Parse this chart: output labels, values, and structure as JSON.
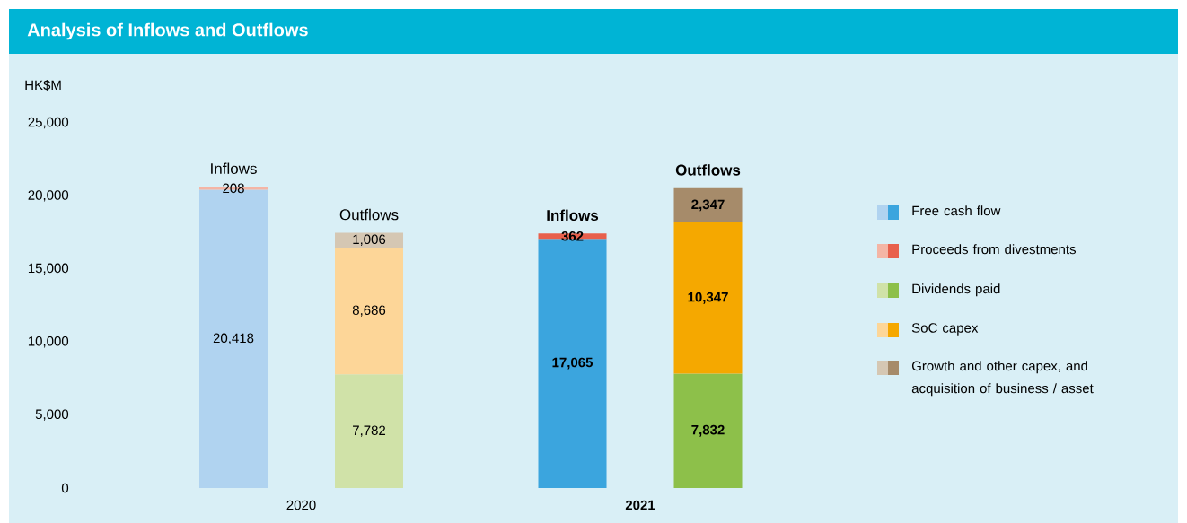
{
  "chart_data": {
    "type": "bar",
    "title": "Analysis of Inflows and Outflows",
    "ylabel": "HK$M",
    "categories": [
      null,
      null,
      null,
      null
    ],
    "stacked": true,
    "legend": "right",
    "ylim": [
      0,
      25000
    ],
    "yticks": [
      0,
      {
        "value": 5000,
        "label": "5,000"
      },
      {
        "value": 10000,
        "label": "10,000"
      },
      {
        "value": 15000,
        "label": "15,000"
      },
      {
        "value": 20000,
        "label": "20,000"
      },
      {
        "value": 25000,
        "label": "25,000"
      }
    ],
    "series": [
      {
        "name": "Free cash flow",
        "values": [
          20418,
          null,
          17065,
          null
        ],
        "colors": [
          "#b0d3f0",
          null,
          "#3ba5de",
          null
        ],
        "value_labels": [
          "20,418",
          null,
          "17,065",
          null
        ]
      },
      {
        "name": "Proceeds from divestments",
        "values": [
          208,
          null,
          362,
          null
        ],
        "colors": [
          "#f4b5a5",
          null,
          "#e8604c",
          null
        ],
        "value_labels": [
          "208",
          null,
          "362",
          null
        ]
      },
      {
        "name": "Dividends paid",
        "values": [
          null,
          7782,
          null,
          7832
        ],
        "colors": [
          null,
          "#d0e2a8",
          null,
          "#8dc04a"
        ],
        "value_labels": [
          null,
          "7,782",
          null,
          "7,832"
        ]
      },
      {
        "name": "SoC capex",
        "values": [
          null,
          8686,
          null,
          10347
        ],
        "colors": [
          null,
          "#fdd698",
          null,
          "#f5a800"
        ],
        "value_labels": [
          null,
          "8,686",
          null,
          "10,347"
        ]
      },
      {
        "name": "Growth and other capex, and acquisition of business / asset",
        "values": [
          null,
          1006,
          null,
          2347
        ],
        "colors": [
          null,
          "#d5c7b3",
          null,
          "#a68b6a"
        ],
        "value_labels": [
          null,
          "1,006",
          null,
          "2,347"
        ]
      }
    ],
    "annotations": [
      "Inflows",
      "Outflows",
      "Inflows",
      "Outflows",
      "2020",
      "2021"
    ]
  }
}
